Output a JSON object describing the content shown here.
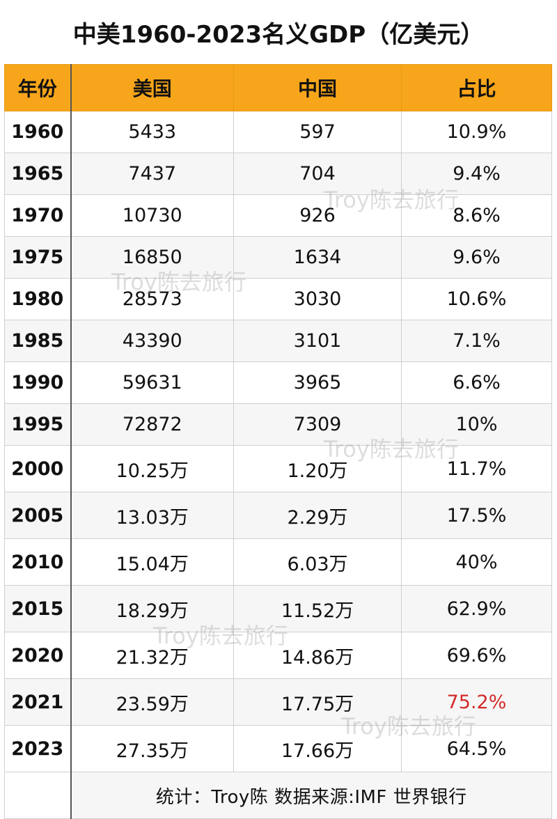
{
  "title": "中美1960-2023名义GDP（亿美元）",
  "headers": {
    "year": "年份",
    "usa": "美国",
    "china": "中国",
    "ratio": "占比"
  },
  "rows": [
    {
      "year": "1960",
      "usa": "5433",
      "china": "597",
      "ratio": "10.9%"
    },
    {
      "year": "1965",
      "usa": "7437",
      "china": "704",
      "ratio": "9.4%"
    },
    {
      "year": "1970",
      "usa": "10730",
      "china": "926",
      "ratio": "8.6%"
    },
    {
      "year": "1975",
      "usa": "16850",
      "china": "1634",
      "ratio": "9.6%"
    },
    {
      "year": "1980",
      "usa": "28573",
      "china": "3030",
      "ratio": "10.6%"
    },
    {
      "year": "1985",
      "usa": "43390",
      "china": "3101",
      "ratio": "7.1%"
    },
    {
      "year": "1990",
      "usa": "59631",
      "china": "3965",
      "ratio": "6.6%"
    },
    {
      "year": "1995",
      "usa": "72872",
      "china": "7309",
      "ratio": "10%"
    },
    {
      "year": "2000",
      "usa": "10.25万",
      "china": "1.20万",
      "ratio": "11.7%"
    },
    {
      "year": "2005",
      "usa": "13.03万",
      "china": "2.29万",
      "ratio": "17.5%"
    },
    {
      "year": "2010",
      "usa": "15.04万",
      "china": "6.03万",
      "ratio": "40%"
    },
    {
      "year": "2015",
      "usa": "18.29万",
      "china": "11.52万",
      "ratio": "62.9%"
    },
    {
      "year": "2020",
      "usa": "21.32万",
      "china": "14.86万",
      "ratio": "69.6%"
    },
    {
      "year": "2021",
      "usa": "23.59万",
      "china": "17.75万",
      "ratio": "75.2%"
    },
    {
      "year": "2023",
      "usa": "27.35万",
      "china": "17.66万",
      "ratio": "64.5%"
    }
  ],
  "highlight_color": "#d32a2a",
  "header_color": "#f7a51a",
  "footer": "统计：Troy陈  数据来源:IMF 世界银行",
  "watermark": "Troy陈去旅行"
}
